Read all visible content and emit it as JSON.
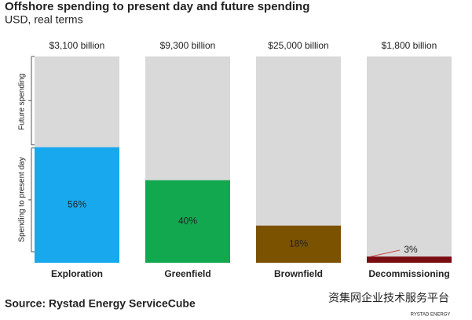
{
  "chart_data": {
    "type": "stacked_share_bar",
    "title": "Offshore spending to present day and future spending",
    "subtitle": "USD, real terms",
    "categories": [
      "Exploration",
      "Greenfield",
      "Brownfield",
      "Decommissioning"
    ],
    "total_labels": [
      "$3,100 billion",
      "$9,300 billion",
      "$25,000 billion",
      "$1,800 billion"
    ],
    "series": [
      {
        "name": "Spending to present day",
        "colors": [
          "#18a8ee",
          "#12a84f",
          "#7b5200",
          "#7a0d12"
        ],
        "values": [
          56,
          40,
          18,
          3
        ],
        "value_labels": [
          "56%",
          "40%",
          "18%",
          "3%"
        ]
      }
    ],
    "remainder_name": "Future spending",
    "remainder_color": "#d9d9d9",
    "ylim": [
      0,
      100
    ],
    "source": "Source: Rystad Energy ServiceCube",
    "watermark": "资集网企业技术服务平台",
    "logo": "RYSTAD ENERGY"
  }
}
